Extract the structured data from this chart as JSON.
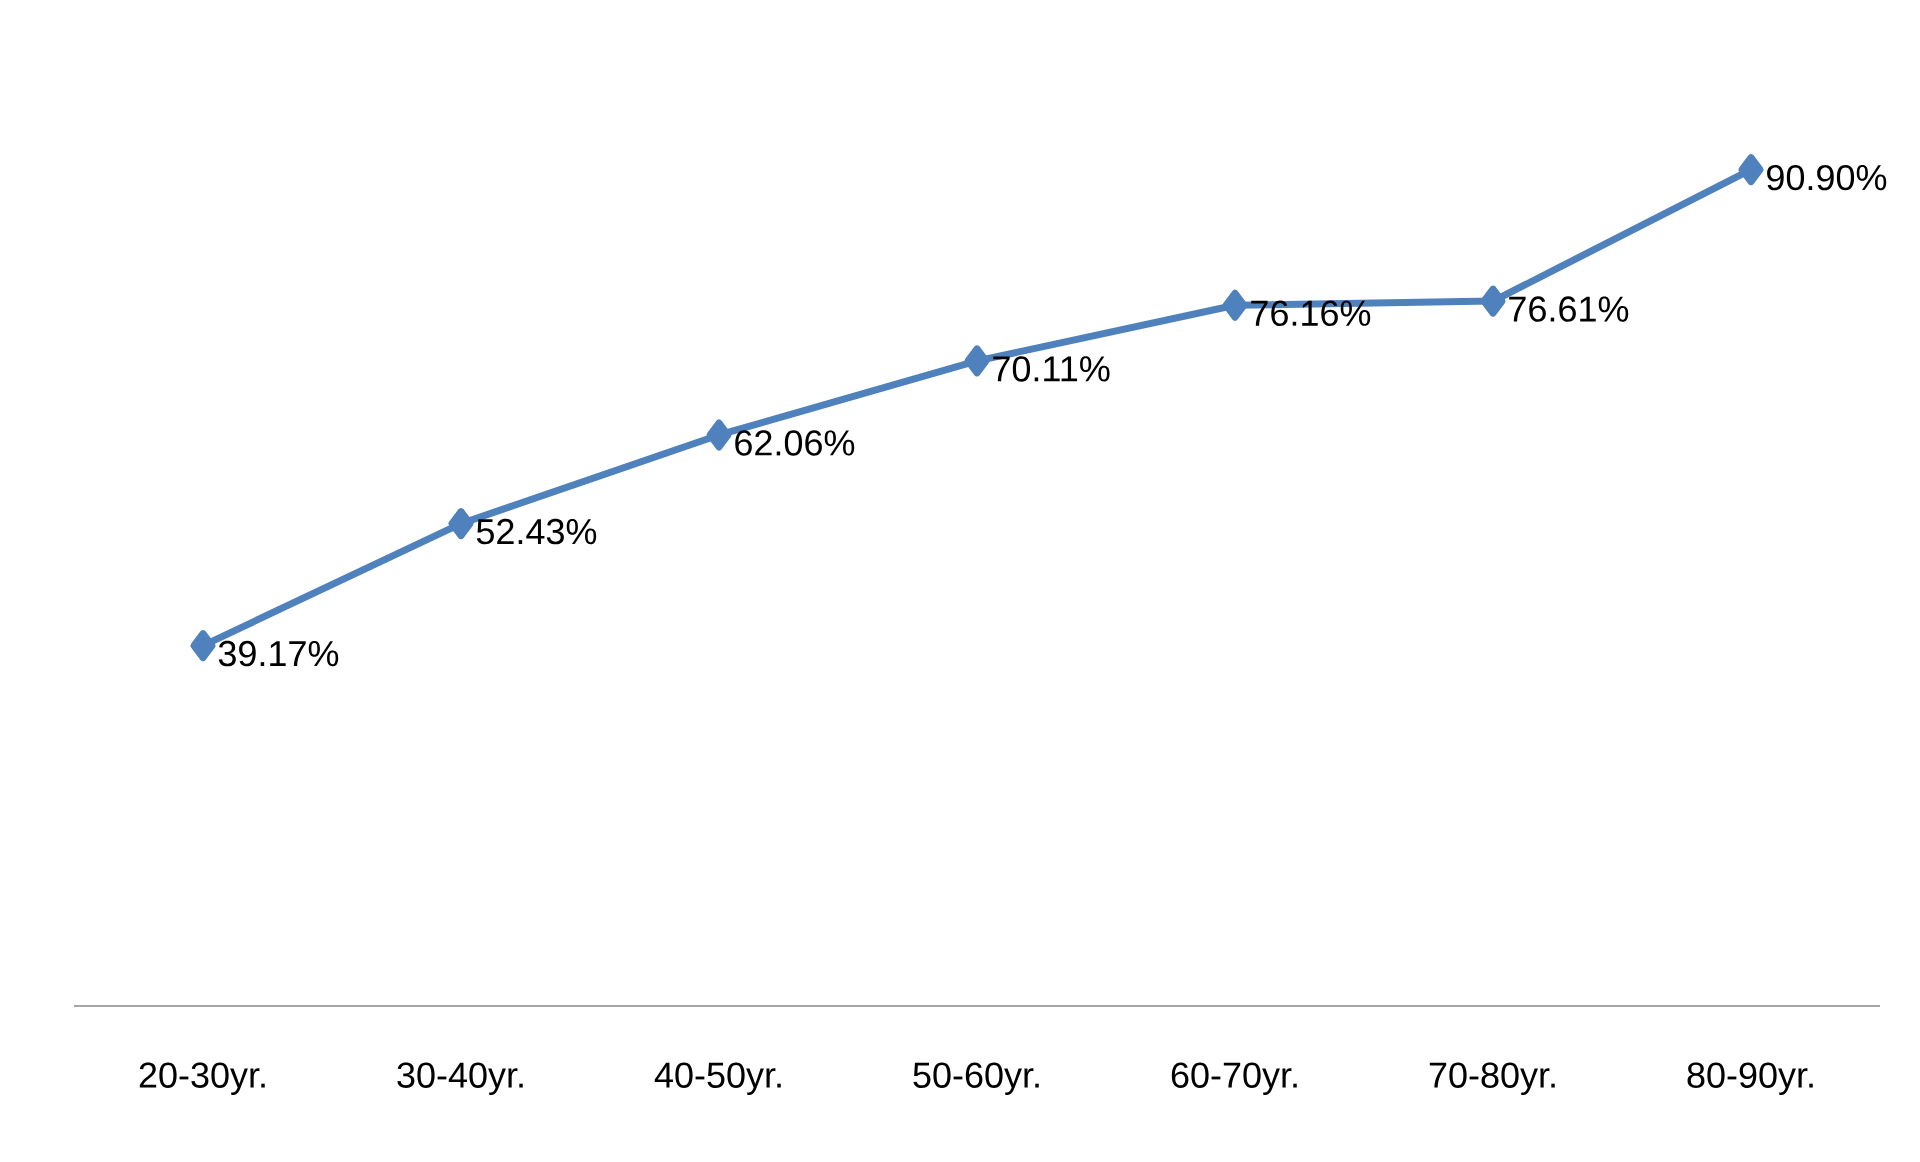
{
  "chart_data": {
    "type": "line",
    "categories": [
      "20-30yr.",
      "30-40yr.",
      "40-50yr.",
      "50-60yr.",
      "60-70yr.",
      "70-80yr.",
      "80-90yr."
    ],
    "series": [
      {
        "color": "#4f81bd",
        "values": [
          39.17,
          52.43,
          62.06,
          70.11,
          76.16,
          76.61,
          90.9
        ],
        "value_labels": [
          "39.17%",
          "52.43%",
          "62.06%",
          "70.11%",
          "76.16%",
          "76.61%",
          "90.90%"
        ]
      }
    ],
    "marker": "diamond",
    "line_style": "solid",
    "tick_labels": "x"
  }
}
